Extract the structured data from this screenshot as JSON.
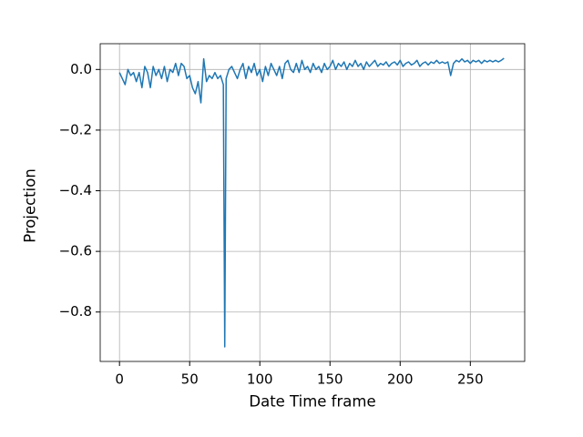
{
  "chart_data": {
    "type": "line",
    "x_label": "Date Time frame",
    "y_label": "Projection",
    "x": [
      0,
      2,
      4,
      6,
      8,
      10,
      12,
      14,
      16,
      18,
      20,
      22,
      24,
      26,
      28,
      30,
      32,
      34,
      36,
      38,
      40,
      42,
      44,
      46,
      48,
      50,
      52,
      54,
      56,
      58,
      60,
      62,
      64,
      66,
      68,
      70,
      72,
      74,
      75,
      76,
      78,
      80,
      82,
      84,
      86,
      88,
      90,
      92,
      94,
      96,
      98,
      100,
      102,
      104,
      106,
      108,
      110,
      112,
      114,
      116,
      118,
      120,
      122,
      124,
      126,
      128,
      130,
      132,
      134,
      136,
      138,
      140,
      142,
      144,
      146,
      148,
      150,
      152,
      154,
      156,
      158,
      160,
      162,
      164,
      166,
      168,
      170,
      172,
      174,
      176,
      178,
      180,
      182,
      184,
      186,
      188,
      190,
      192,
      194,
      196,
      198,
      200,
      202,
      204,
      206,
      208,
      210,
      212,
      214,
      216,
      218,
      220,
      222,
      224,
      226,
      228,
      230,
      232,
      234,
      236,
      238,
      240,
      242,
      244,
      246,
      248,
      250,
      252,
      254,
      256,
      258,
      260,
      262,
      264,
      266,
      268,
      270,
      272,
      274
    ],
    "series": [
      {
        "color": "#1f77b4",
        "values": [
          -0.01,
          -0.03,
          -0.05,
          0.0,
          -0.02,
          -0.01,
          -0.04,
          -0.01,
          -0.06,
          0.01,
          -0.01,
          -0.06,
          0.01,
          -0.02,
          0.0,
          -0.03,
          0.01,
          -0.04,
          0.0,
          -0.01,
          0.02,
          -0.02,
          0.02,
          0.01,
          -0.03,
          -0.02,
          -0.06,
          -0.08,
          -0.04,
          -0.11,
          0.035,
          -0.04,
          -0.02,
          -0.03,
          -0.01,
          -0.03,
          -0.02,
          -0.05,
          -0.915,
          -0.03,
          0.0,
          0.01,
          -0.01,
          -0.03,
          0.0,
          0.02,
          -0.03,
          0.01,
          -0.01,
          0.02,
          -0.02,
          0.0,
          -0.04,
          0.01,
          -0.02,
          0.02,
          0.0,
          -0.02,
          0.01,
          -0.03,
          0.02,
          0.03,
          0.0,
          -0.01,
          0.02,
          -0.01,
          0.03,
          0.0,
          0.01,
          -0.01,
          0.02,
          0.0,
          0.01,
          -0.01,
          0.02,
          0.0,
          0.01,
          0.03,
          0.0,
          0.02,
          0.01,
          0.025,
          0.0,
          0.02,
          0.01,
          0.03,
          0.01,
          0.02,
          0.0,
          0.025,
          0.01,
          0.02,
          0.03,
          0.01,
          0.02,
          0.015,
          0.025,
          0.01,
          0.02,
          0.025,
          0.015,
          0.03,
          0.01,
          0.02,
          0.025,
          0.015,
          0.02,
          0.03,
          0.01,
          0.02,
          0.025,
          0.015,
          0.025,
          0.02,
          0.03,
          0.02,
          0.025,
          0.02,
          0.025,
          -0.02,
          0.02,
          0.03,
          0.025,
          0.035,
          0.025,
          0.03,
          0.02,
          0.03,
          0.025,
          0.03,
          0.02,
          0.03,
          0.025,
          0.03,
          0.025,
          0.03,
          0.025,
          0.03,
          0.037
        ]
      }
    ],
    "xlim": [
      -13.75,
      288.75
    ],
    "xticks": [
      0,
      50,
      100,
      150,
      200,
      250
    ],
    "ylim": [
      -0.963,
      0.085
    ],
    "yticks": [
      {
        "value": 0.0,
        "label": "0.0"
      },
      {
        "value": -0.2,
        "label": "−0.2"
      },
      {
        "value": -0.4,
        "label": "−0.4"
      },
      {
        "value": -0.6,
        "label": "−0.6"
      },
      {
        "value": -0.8,
        "label": "−0.8"
      }
    ],
    "grid": true
  }
}
